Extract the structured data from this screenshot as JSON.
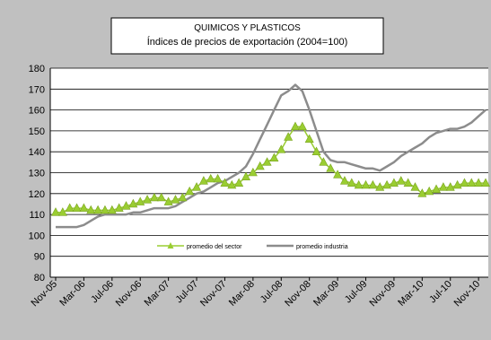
{
  "chart_data": {
    "type": "line",
    "title": "QUIMICOS Y PLASTICOS",
    "subtitle": "Índices de precios de exportación (2004=100)",
    "xlabel": "",
    "ylabel": "",
    "ylim": [
      80,
      180
    ],
    "yticks": [
      80,
      90,
      100,
      110,
      120,
      130,
      140,
      150,
      160,
      170,
      180
    ],
    "grid": true,
    "legend_position": "bottom-center",
    "x_tick_labels": [
      "Nov-05",
      "Mar-06",
      "Jul-06",
      "Nov-06",
      "Mar-07",
      "Jul-07",
      "Nov-07",
      "Mar-08",
      "Jul-08",
      "Nov-08",
      "Mar-09",
      "Jul-09",
      "Nov-09",
      "Mar-10",
      "Jul-10",
      "Nov-10"
    ],
    "x_months": [
      "Nov-05",
      "Dic-05",
      "Ene-06",
      "Feb-06",
      "Mar-06",
      "Abr-06",
      "May-06",
      "Jun-06",
      "Jul-06",
      "Ago-06",
      "Sep-06",
      "Oct-06",
      "Nov-06",
      "Dic-06",
      "Ene-07",
      "Feb-07",
      "Mar-07",
      "Abr-07",
      "May-07",
      "Jun-07",
      "Jul-07",
      "Ago-07",
      "Sep-07",
      "Oct-07",
      "Nov-07",
      "Dic-07",
      "Ene-08",
      "Feb-08",
      "Mar-08",
      "Abr-08",
      "May-08",
      "Jun-08",
      "Jul-08",
      "Ago-08",
      "Sep-08",
      "Oct-08",
      "Nov-08",
      "Dic-08",
      "Ene-09",
      "Feb-09",
      "Mar-09",
      "Abr-09",
      "May-09",
      "Jun-09",
      "Jul-09",
      "Ago-09",
      "Sep-09",
      "Oct-09",
      "Nov-09",
      "Dic-09",
      "Ene-10",
      "Feb-10",
      "Mar-10",
      "Abr-10",
      "May-10",
      "Jun-10",
      "Jul-10",
      "Ago-10",
      "Sep-10",
      "Oct-10",
      "Nov-10",
      "Dic-10"
    ],
    "series": [
      {
        "name": "promedio del sector",
        "color": "#9acd32",
        "marker": "triangle",
        "values": [
          111,
          111,
          113,
          113,
          113,
          112,
          112,
          112,
          112,
          113,
          114,
          115,
          116,
          117,
          118,
          118,
          116,
          117,
          118,
          121,
          123,
          126,
          127,
          127,
          125,
          124,
          125,
          128,
          130,
          133,
          135,
          137,
          141,
          147,
          152,
          152,
          146,
          140,
          135,
          132,
          129,
          126,
          125,
          124,
          124,
          124,
          123,
          124,
          125,
          126,
          125,
          123,
          120,
          121,
          122,
          123,
          123,
          124,
          125,
          125,
          125,
          125
        ]
      },
      {
        "name": "promedio industria",
        "color": "#8c8c8c",
        "marker": "none",
        "values": [
          104,
          104,
          104,
          104,
          105,
          107,
          109,
          110,
          110,
          110,
          110,
          111,
          111,
          112,
          113,
          113,
          113,
          114,
          116,
          118,
          120,
          121,
          123,
          125,
          126,
          128,
          130,
          133,
          139,
          146,
          153,
          160,
          167,
          169,
          172,
          169,
          160,
          150,
          140,
          136,
          135,
          135,
          134,
          133,
          132,
          132,
          131,
          133,
          135,
          138,
          140,
          142,
          144,
          147,
          149,
          150,
          151,
          151,
          152,
          154,
          157,
          160
        ]
      }
    ]
  }
}
